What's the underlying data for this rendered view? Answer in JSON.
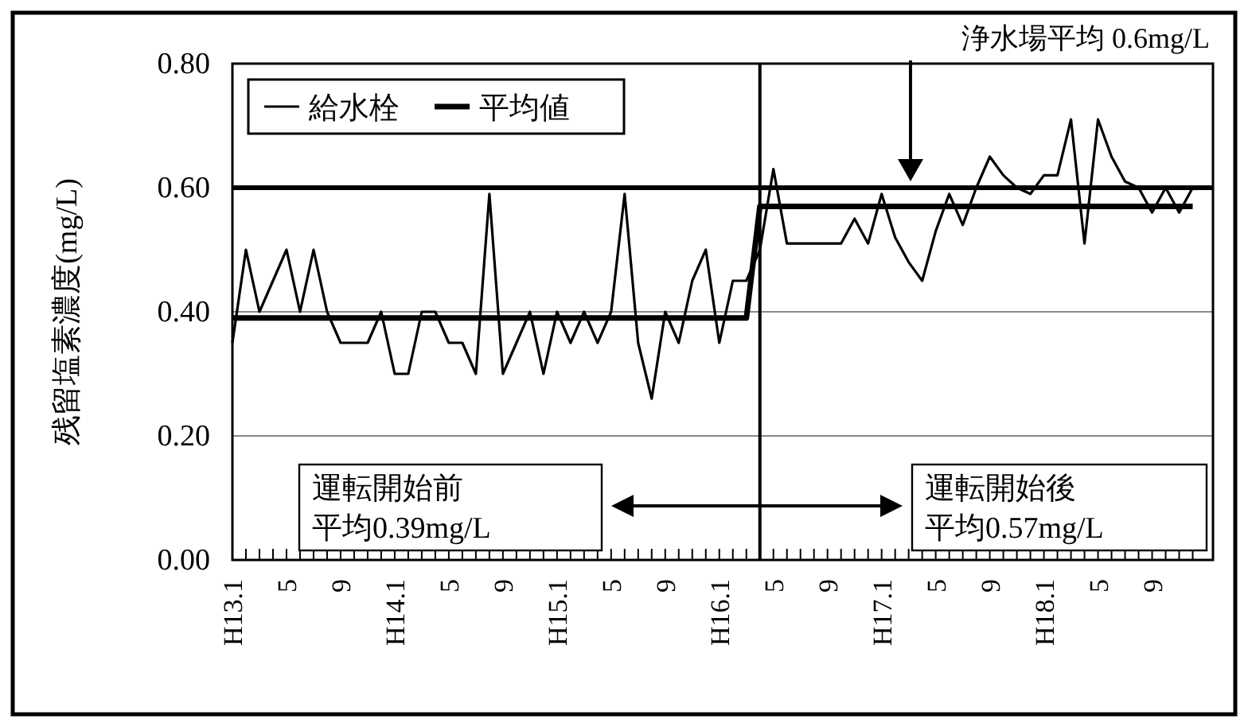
{
  "chart_data": {
    "type": "line",
    "ylabel": "残留塩素濃度(mg/L)",
    "categories": [
      "H13.1",
      null,
      null,
      null,
      "5",
      null,
      null,
      null,
      "9",
      null,
      null,
      null,
      "H14.1",
      null,
      null,
      null,
      "5",
      null,
      null,
      null,
      "9",
      null,
      null,
      null,
      "H15.1",
      null,
      null,
      null,
      "5",
      null,
      null,
      null,
      "9",
      null,
      null,
      null,
      "H16.1",
      null,
      null,
      null,
      "5",
      null,
      null,
      null,
      "9",
      null,
      null,
      null,
      "H17.1",
      null,
      null,
      null,
      "5",
      null,
      null,
      null,
      "9",
      null,
      null,
      null,
      "H18.1",
      null,
      null,
      null,
      "5",
      null,
      null,
      null,
      "9",
      null,
      null,
      null
    ],
    "series": [
      {
        "name": "給水栓",
        "color": "#000000",
        "line_style": "solid",
        "values": [
          0.35,
          0.5,
          0.4,
          0.45,
          0.5,
          0.4,
          0.5,
          0.4,
          0.35,
          0.35,
          0.35,
          0.4,
          0.3,
          0.3,
          0.4,
          0.4,
          0.35,
          0.35,
          0.3,
          0.59,
          0.3,
          0.35,
          0.4,
          0.3,
          0.4,
          0.35,
          0.4,
          0.35,
          0.4,
          0.59,
          0.35,
          0.26,
          0.4,
          0.35,
          0.45,
          0.5,
          0.35,
          0.45,
          0.45,
          0.5,
          0.63,
          0.51,
          0.51,
          0.51,
          0.51,
          0.51,
          0.55,
          0.51,
          0.59,
          0.52,
          0.48,
          0.45,
          0.53,
          0.59,
          0.54,
          0.6,
          0.65,
          0.62,
          0.6,
          0.59,
          0.62,
          0.62,
          0.71,
          0.51,
          0.71,
          0.65,
          0.61,
          0.6,
          0.56,
          0.6,
          0.56,
          0.6
        ]
      },
      {
        "name": "平均値",
        "color": "#000000",
        "line_style": "solid",
        "values": [
          0.39,
          0.39,
          0.39,
          0.39,
          0.39,
          0.39,
          0.39,
          0.39,
          0.39,
          0.39,
          0.39,
          0.39,
          0.39,
          0.39,
          0.39,
          0.39,
          0.39,
          0.39,
          0.39,
          0.39,
          0.39,
          0.39,
          0.39,
          0.39,
          0.39,
          0.39,
          0.39,
          0.39,
          0.39,
          0.39,
          0.39,
          0.39,
          0.39,
          0.39,
          0.39,
          0.39,
          0.39,
          0.39,
          0.39,
          0.57,
          0.57,
          0.57,
          0.57,
          0.57,
          0.57,
          0.57,
          0.57,
          0.57,
          0.57,
          0.57,
          0.57,
          0.57,
          0.57,
          0.57,
          0.57,
          0.57,
          0.57,
          0.57,
          0.57,
          0.57,
          0.57,
          0.57,
          0.57,
          0.57,
          0.57,
          0.57,
          0.57,
          0.57,
          0.57,
          0.57,
          0.57,
          0.57
        ]
      }
    ],
    "ylim": [
      0,
      0.8
    ],
    "yticks": [
      {
        "value": 0,
        "label": "0.00"
      },
      {
        "value": 0.2,
        "label": "0.20"
      },
      {
        "value": 0.4,
        "label": "0.40"
      },
      {
        "value": 0.6,
        "label": "0.60"
      },
      {
        "value": 0.8,
        "label": "0.80"
      }
    ],
    "grid": "y",
    "legend": "top left",
    "marker": "none",
    "ref_lines": [
      {
        "axis": "y",
        "value": 0.6
      }
    ],
    "annotations": [
      "運転開始前",
      "平均0.39mg/L",
      "運転開始後",
      "平均0.57mg/L",
      "浄水場平均 0.6mg/L"
    ]
  }
}
